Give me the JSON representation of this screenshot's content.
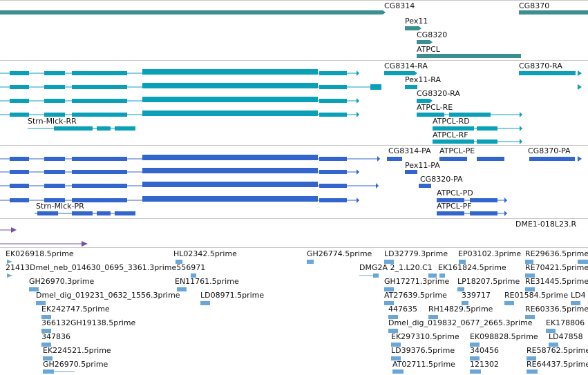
{
  "colors": {
    "gene": "#3b8f91",
    "transcript": "#0aa0b8",
    "protein": "#3366cc",
    "clone": "#7a4fa3",
    "est": "#6aa7d6",
    "separator": "#c8c8c8"
  },
  "tracks": {
    "genes": [
      "CG8314",
      "Pex11",
      "CG8320",
      "ATPCL",
      "CG8370"
    ],
    "transcripts": [
      "CG8314-RA",
      "Pex11-RA",
      "CG8320-RA",
      "ATPCL-RE",
      "ATPCL-RD",
      "ATPCL-RF",
      "CG8370-RA",
      "Strn-Mlck-RR"
    ],
    "proteins": [
      "CG8314-PA",
      "ATPCL-PE",
      "CG8370-PA",
      "Pex11-PA",
      "CG8320-PA",
      "ATPCL-PD",
      "ATPCL-PF",
      "Strn-Mlck-PR"
    ],
    "clones": [
      "DME1-018L23.R"
    ],
    "ests": [
      "EK026918.5prime",
      "HL02342.5prime",
      "GH26774.5prime",
      "LD32779.3prime",
      "EP03102.3prime",
      "RE29636.5prime",
      "21413Dmel_neb_014630_0695_3361.3prime556971",
      "DMG2A 2_1.L20.C1",
      "EK161824.5prime",
      "RE70421.5prime",
      "GH26970.3prime",
      "EN11761.5prime",
      "GH17271.3prime",
      "LP18207.5prime",
      "RE31445.5prime",
      "Dmel_dig_019231_0632_1556.3prime",
      "LD08971.5prime",
      "AT27639.5prime",
      "339717",
      "RE01584.5prime",
      "LD4",
      "EK242747.5prime",
      "447635",
      "RH14829.5prime",
      "RE60336.5prime",
      "366132GH19138.5prime",
      "Dmel_dig_019832_0677_2665.3prime",
      "EK178806",
      "347836",
      "EK297310.5prime",
      "EK098828.5prime",
      "LD47858",
      "EK224521.5prime",
      "LD39376.5prime",
      "340456",
      "RE58762.5prime",
      "GH26970.5prime",
      "AT02711.5prime",
      "121302",
      "RE64437.5prime"
    ]
  }
}
